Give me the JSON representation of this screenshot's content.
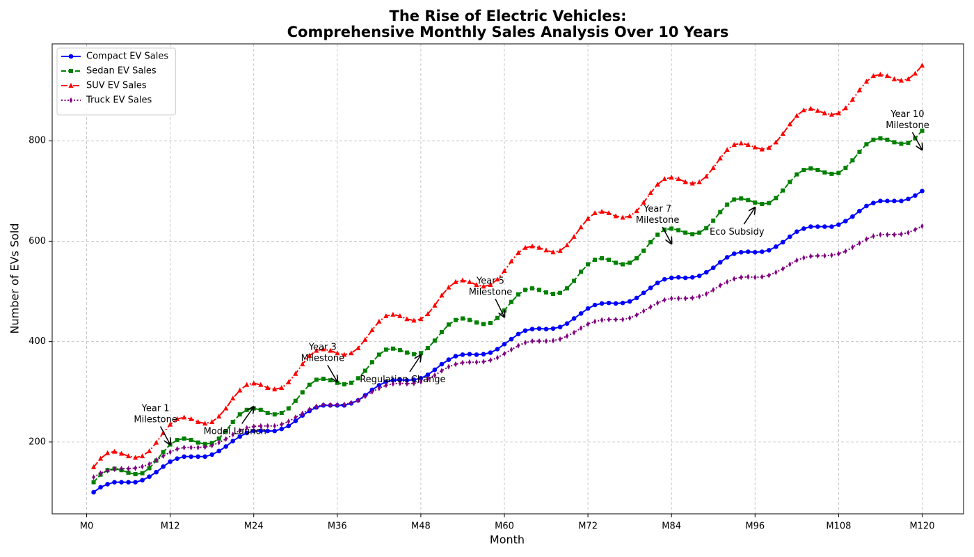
{
  "chart_data": {
    "type": "line",
    "title": "The Rise of Electric Vehicles:\nComprehensive Monthly Sales Analysis Over 10 Years",
    "xlabel": "Month",
    "ylabel": "Number of EVs Sold",
    "x": [
      1,
      2,
      3,
      4,
      5,
      6,
      7,
      8,
      9,
      10,
      11,
      12,
      13,
      14,
      15,
      16,
      17,
      18,
      19,
      20,
      21,
      22,
      23,
      24,
      25,
      26,
      27,
      28,
      29,
      30,
      31,
      32,
      33,
      34,
      35,
      36,
      37,
      38,
      39,
      40,
      41,
      42,
      43,
      44,
      45,
      46,
      47,
      48,
      49,
      50,
      51,
      52,
      53,
      54,
      55,
      56,
      57,
      58,
      59,
      60,
      61,
      62,
      63,
      64,
      65,
      66,
      67,
      68,
      69,
      70,
      71,
      72,
      73,
      74,
      75,
      76,
      77,
      78,
      79,
      80,
      81,
      82,
      83,
      84,
      85,
      86,
      87,
      88,
      89,
      90,
      91,
      92,
      93,
      94,
      95,
      96,
      97,
      98,
      99,
      100,
      101,
      102,
      103,
      104,
      105,
      106,
      107,
      108,
      109,
      110,
      111,
      112,
      113,
      114,
      115,
      116,
      117,
      118,
      119,
      120
    ],
    "series": [
      {
        "name": "Compact EV Sales",
        "color": "#0000ff",
        "marker": "o",
        "linestyle": "solid",
        "values": [
          100,
          110,
          116,
          120,
          120,
          120,
          120,
          124,
          131,
          140,
          151,
          161,
          167,
          171,
          171,
          171,
          171,
          175,
          182,
          191,
          202,
          211,
          218,
          222,
          222,
          222,
          222,
          226,
          232,
          242,
          253,
          262,
          269,
          273,
          273,
          273,
          273,
          277,
          283,
          293,
          304,
          313,
          320,
          323,
          324,
          323,
          324,
          327,
          334,
          344,
          355,
          364,
          371,
          374,
          375,
          374,
          375,
          378,
          385,
          395,
          405,
          415,
          422,
          425,
          426,
          425,
          426,
          429,
          436,
          446,
          456,
          466,
          473,
          476,
          477,
          476,
          477,
          480,
          487,
          497,
          507,
          517,
          524,
          527,
          528,
          527,
          528,
          531,
          538,
          547,
          558,
          568,
          575,
          578,
          579,
          578,
          579,
          582,
          589,
          598,
          609,
          619,
          625,
          629,
          629,
          629,
          629,
          633,
          640,
          649,
          660,
          670,
          676,
          680,
          680,
          680,
          680,
          684,
          691,
          700
        ]
      },
      {
        "name": "Sedan EV Sales",
        "color": "#008000",
        "marker": "s",
        "linestyle": "dashed",
        "values": [
          120,
          135,
          144,
          147,
          144,
          139,
          136,
          138,
          148,
          163,
          180,
          195,
          204,
          207,
          204,
          199,
          196,
          198,
          207,
          222,
          240,
          255,
          264,
          267,
          264,
          258,
          255,
          258,
          267,
          282,
          299,
          314,
          324,
          326,
          323,
          318,
          315,
          318,
          327,
          342,
          359,
          374,
          384,
          386,
          383,
          378,
          375,
          377,
          387,
          402,
          419,
          434,
          443,
          446,
          443,
          438,
          435,
          437,
          447,
          462,
          479,
          494,
          503,
          506,
          503,
          498,
          495,
          497,
          506,
          521,
          539,
          554,
          563,
          566,
          563,
          557,
          554,
          557,
          566,
          581,
          598,
          613,
          623,
          625,
          622,
          617,
          614,
          617,
          626,
          641,
          658,
          673,
          683,
          685,
          682,
          677,
          674,
          676,
          686,
          701,
          718,
          733,
          742,
          745,
          742,
          737,
          734,
          736,
          746,
          761,
          778,
          793,
          802,
          805,
          802,
          797,
          794,
          796,
          805,
          820
        ]
      },
      {
        "name": "SUV EV Sales",
        "color": "#ff0000",
        "marker": "^",
        "linestyle": "dashdot",
        "values": [
          150,
          167,
          178,
          181,
          177,
          172,
          169,
          172,
          182,
          199,
          218,
          235,
          246,
          249,
          246,
          240,
          237,
          240,
          251,
          267,
          287,
          303,
          314,
          317,
          314,
          308,
          305,
          308,
          319,
          336,
          355,
          372,
          382,
          385,
          382,
          377,
          374,
          377,
          387,
          404,
          423,
          440,
          451,
          454,
          451,
          445,
          442,
          445,
          455,
          472,
          492,
          508,
          519,
          522,
          519,
          513,
          510,
          513,
          524,
          541,
          560,
          577,
          587,
          590,
          587,
          582,
          578,
          581,
          592,
          609,
          628,
          645,
          656,
          659,
          656,
          650,
          647,
          650,
          660,
          677,
          696,
          713,
          724,
          727,
          724,
          718,
          715,
          718,
          729,
          746,
          765,
          782,
          792,
          795,
          792,
          787,
          783,
          786,
          797,
          814,
          833,
          850,
          861,
          864,
          860,
          855,
          852,
          855,
          865,
          882,
          901,
          918,
          929,
          932,
          929,
          923,
          920,
          923,
          934,
          950
        ]
      },
      {
        "name": "Truck EV Sales",
        "color": "#800080",
        "marker": "d",
        "linestyle": "dotted",
        "values": [
          130,
          138,
          143,
          146,
          147,
          147,
          148,
          151,
          156,
          164,
          172,
          180,
          186,
          189,
          189,
          189,
          190,
          193,
          199,
          206,
          215,
          223,
          228,
          231,
          232,
          232,
          232,
          235,
          241,
          249,
          257,
          265,
          271,
          274,
          274,
          274,
          275,
          278,
          283,
          291,
          300,
          307,
          313,
          316,
          317,
          316,
          317,
          320,
          326,
          333,
          342,
          350,
          355,
          358,
          359,
          359,
          360,
          363,
          368,
          376,
          384,
          392,
          398,
          401,
          401,
          401,
          402,
          405,
          411,
          418,
          427,
          435,
          440,
          443,
          444,
          444,
          444,
          447,
          453,
          461,
          469,
          477,
          483,
          486,
          486,
          486,
          487,
          490,
          495,
          503,
          512,
          519,
          525,
          528,
          529,
          528,
          529,
          532,
          538,
          545,
          554,
          562,
          567,
          570,
          571,
          571,
          572,
          575,
          580,
          588,
          596,
          604,
          610,
          613,
          613,
          613,
          614,
          617,
          623,
          630
        ]
      }
    ],
    "xlim": [
      -4.95,
      125.95
    ],
    "xticks": [
      {
        "value": 0,
        "label": "M0"
      },
      {
        "value": 12,
        "label": "M12"
      },
      {
        "value": 24,
        "label": "M24"
      },
      {
        "value": 36,
        "label": "M36"
      },
      {
        "value": 48,
        "label": "M48"
      },
      {
        "value": 60,
        "label": "M60"
      },
      {
        "value": 72,
        "label": "M72"
      },
      {
        "value": 84,
        "label": "M84"
      },
      {
        "value": 96,
        "label": "M96"
      },
      {
        "value": 108,
        "label": "M108"
      },
      {
        "value": 120,
        "label": "M120"
      }
    ],
    "ylim": [
      57,
      993
    ],
    "yticks": [
      200,
      400,
      600,
      800
    ],
    "grid": true,
    "legend": "upper left",
    "annotations": [
      {
        "text": "Year 1\nMilestone",
        "x": 12,
        "y": 195
      },
      {
        "text": "Model Launch",
        "x": 24,
        "y": 270
      },
      {
        "text": "Year 3\nMilestone",
        "x": 36,
        "y": 320
      },
      {
        "text": "Regulation Change",
        "x": 48,
        "y": 373
      },
      {
        "text": "Year 5\nMilestone",
        "x": 60,
        "y": 449
      },
      {
        "text": "Year 7\nMilestone",
        "x": 84,
        "y": 595
      },
      {
        "text": "Eco Subsidy",
        "x": 96,
        "y": 667
      },
      {
        "text": "Year 10\nMilestone",
        "x": 120,
        "y": 782
      }
    ]
  }
}
